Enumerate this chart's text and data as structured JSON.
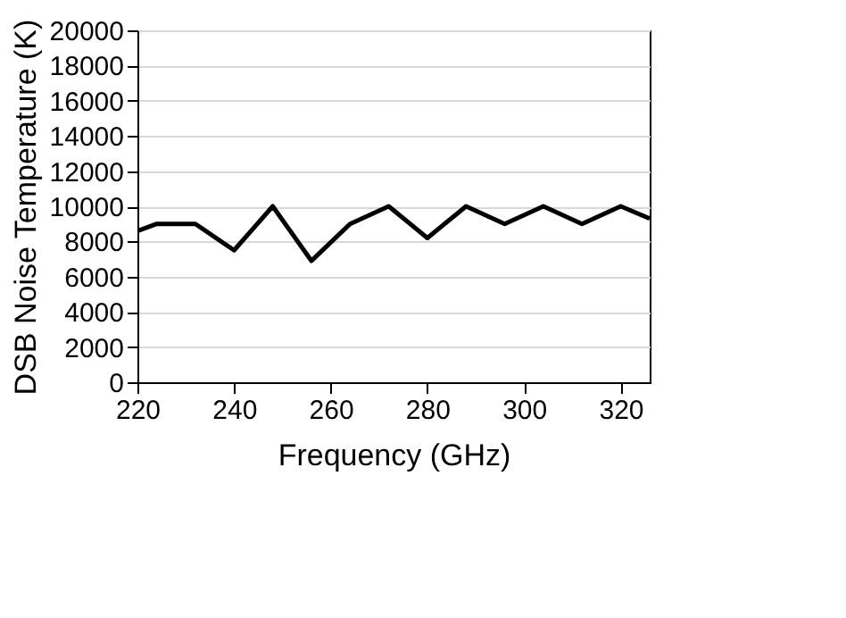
{
  "chart_data": {
    "type": "line",
    "xlabel": "Frequency (GHz)",
    "ylabel": "DSB Noise Temperature (K)",
    "x": [
      220,
      224,
      232,
      240,
      248,
      256,
      264,
      272,
      280,
      288,
      296,
      304,
      312,
      320,
      326
    ],
    "series": [
      {
        "color": "#000000",
        "values": [
          8600,
          9000,
          9000,
          7500,
          10000,
          6900,
          9000,
          10000,
          8200,
          10000,
          9000,
          10000,
          9000,
          10000,
          9300
        ]
      }
    ],
    "xlim": [
      220,
      326
    ],
    "xticks": [
      220,
      240,
      260,
      280,
      300,
      320
    ],
    "ylim": [
      0,
      20000
    ],
    "yticks": [
      0,
      2000,
      4000,
      6000,
      8000,
      10000,
      12000,
      14000,
      16000,
      18000,
      20000
    ],
    "grid": "y",
    "marker": "none",
    "line_style": "solid"
  }
}
